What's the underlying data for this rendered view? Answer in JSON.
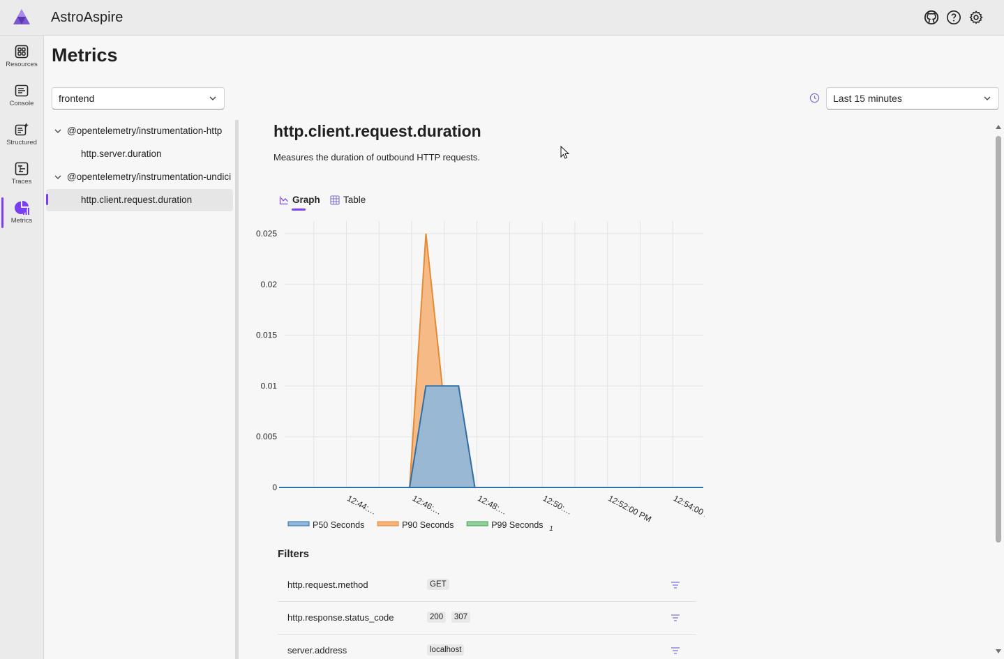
{
  "header": {
    "app_title": "AstroAspire"
  },
  "nav": {
    "items": [
      {
        "label": "Resources",
        "icon": "resources-icon"
      },
      {
        "label": "Console",
        "icon": "console-icon"
      },
      {
        "label": "Structured",
        "icon": "structured-icon"
      },
      {
        "label": "Traces",
        "icon": "traces-icon"
      },
      {
        "label": "Metrics",
        "icon": "metrics-icon",
        "active": true
      }
    ]
  },
  "page": {
    "title": "Metrics"
  },
  "resource_select": {
    "value": "frontend"
  },
  "time_select": {
    "value": "Last 15 minutes"
  },
  "tree": {
    "groups": [
      {
        "label": "@opentelemetry/instrumentation-http",
        "children": [
          "http.server.duration"
        ]
      },
      {
        "label": "@opentelemetry/instrumentation-undici",
        "children": [
          "http.client.request.duration"
        ]
      }
    ],
    "selected": "http.client.request.duration"
  },
  "metric": {
    "title": "http.client.request.duration",
    "description": "Measures the duration of outbound HTTP requests."
  },
  "tabs": [
    {
      "label": "Graph",
      "active": true
    },
    {
      "label": "Table",
      "active": false
    }
  ],
  "chart_data": {
    "type": "area",
    "y_ticks": [
      "0",
      "0.005",
      "0.01",
      "0.015",
      "0.02",
      "0.025"
    ],
    "ylim": [
      0,
      0.025
    ],
    "x_tick_labels": [
      "12:44:…",
      "12:46:…",
      "12:48:…",
      "12:50:…",
      "12:52:00 PM",
      "12:54:00 PM"
    ],
    "x": [
      "12:42:00",
      "12:43:00",
      "12:44:00",
      "12:45:00",
      "12:46:00",
      "12:46:30",
      "12:47:00",
      "12:47:30",
      "12:48:00",
      "12:49:00",
      "12:50:00",
      "12:51:00",
      "12:52:00",
      "12:53:00",
      "12:54:00",
      "12:55:00"
    ],
    "series": [
      {
        "name": "P50 Seconds",
        "color": "#2f6fa8",
        "fill": "#8fb8dc",
        "values": [
          0,
          0,
          0,
          0,
          0,
          0.01,
          0.01,
          0.01,
          0,
          0,
          0,
          0,
          0,
          0,
          0,
          0
        ]
      },
      {
        "name": "P90 Seconds",
        "color": "#e38a33",
        "fill": "#f5b37a",
        "values": [
          0,
          0,
          0,
          0,
          0,
          0.025,
          0.01,
          0.01,
          0,
          0,
          0,
          0,
          0,
          0,
          0,
          0
        ]
      },
      {
        "name": "P99 Seconds",
        "color": "#4aa35a",
        "fill": "#8fd09b",
        "values": [
          0,
          0,
          0,
          0,
          0,
          0,
          0,
          0,
          0,
          0,
          0,
          0,
          0,
          0,
          0,
          0
        ]
      }
    ],
    "legend_suffix": "1",
    "grid": true,
    "legend": "bottom"
  },
  "filters": {
    "title": "Filters",
    "rows": [
      {
        "name": "http.request.method",
        "values": [
          "GET"
        ]
      },
      {
        "name": "http.response.status_code",
        "values": [
          "200",
          "307"
        ]
      },
      {
        "name": "server.address",
        "values": [
          "localhost"
        ]
      }
    ]
  }
}
